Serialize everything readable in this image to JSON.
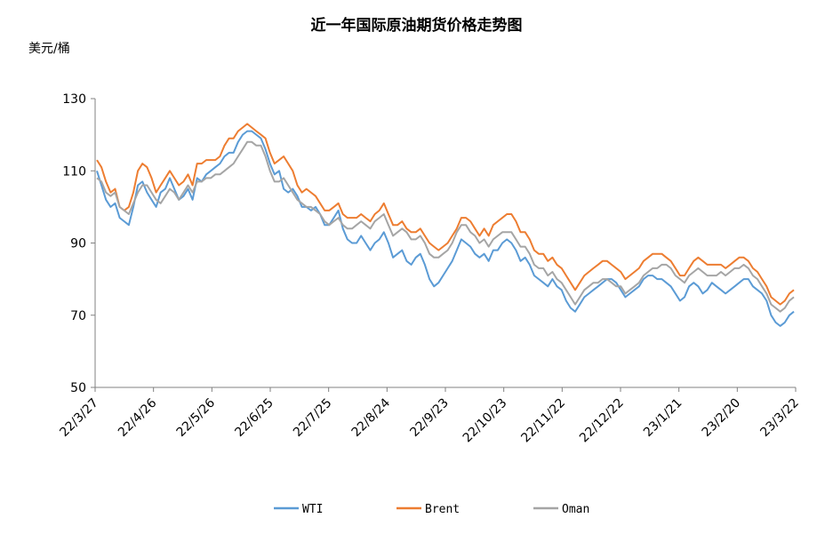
{
  "chart_data": {
    "type": "line",
    "title": "近一年国际原油期货价格走势图",
    "ylabel": "美元/桶",
    "xlabel": "",
    "ylim": [
      50,
      130
    ],
    "yticks": [
      50,
      70,
      90,
      110,
      130
    ],
    "xtick_labels": [
      "22/3/27",
      "22/4/26",
      "22/5/26",
      "22/6/25",
      "22/7/25",
      "22/8/24",
      "22/9/23",
      "22/10/23",
      "22/11/22",
      "22/12/22",
      "23/1/21",
      "23/2/20",
      "23/3/22"
    ],
    "x_start": "22/3/27",
    "x_end": "23/3/22",
    "legend_position": "bottom",
    "grid": false,
    "series": [
      {
        "name": "WTI",
        "color": "#5b9bd5",
        "values": [
          110,
          106,
          102,
          100,
          101,
          97,
          96,
          95,
          100,
          106,
          107,
          104,
          102,
          100,
          104,
          105,
          108,
          105,
          102,
          103,
          105,
          102,
          108,
          107,
          109,
          110,
          111,
          112,
          114,
          115,
          115,
          118,
          120,
          121,
          121,
          120,
          119,
          116,
          112,
          109,
          110,
          105,
          104,
          105,
          103,
          100,
          100,
          99,
          100,
          98,
          95,
          95,
          97,
          99,
          94,
          91,
          90,
          90,
          92,
          90,
          88,
          90,
          91,
          93,
          90,
          86,
          87,
          88,
          85,
          84,
          86,
          87,
          84,
          80,
          78,
          79,
          81,
          83,
          85,
          88,
          91,
          90,
          89,
          87,
          86,
          87,
          85,
          88,
          88,
          90,
          91,
          90,
          88,
          85,
          86,
          84,
          81,
          80,
          79,
          78,
          80,
          78,
          77,
          74,
          72,
          71,
          73,
          75,
          76,
          77,
          78,
          79,
          80,
          80,
          79,
          77,
          75,
          76,
          77,
          78,
          80,
          81,
          81,
          80,
          80,
          79,
          78,
          76,
          74,
          75,
          78,
          79,
          78,
          76,
          77,
          79,
          78,
          77,
          76,
          77,
          78,
          79,
          80,
          80,
          78,
          77,
          76,
          74,
          70,
          68,
          67,
          68,
          70,
          71
        ]
      },
      {
        "name": "Brent",
        "color": "#ed7d31",
        "values": [
          113,
          111,
          107,
          104,
          105,
          100,
          99,
          100,
          104,
          110,
          112,
          111,
          108,
          104,
          106,
          108,
          110,
          108,
          106,
          107,
          109,
          106,
          112,
          112,
          113,
          113,
          113,
          114,
          117,
          119,
          119,
          121,
          122,
          123,
          122,
          121,
          120,
          119,
          115,
          112,
          113,
          114,
          112,
          110,
          106,
          104,
          105,
          104,
          103,
          101,
          99,
          99,
          100,
          101,
          98,
          97,
          97,
          97,
          98,
          97,
          96,
          98,
          99,
          101,
          98,
          95,
          95,
          96,
          94,
          93,
          93,
          94,
          92,
          90,
          89,
          88,
          89,
          90,
          92,
          94,
          97,
          97,
          96,
          94,
          92,
          94,
          92,
          95,
          96,
          97,
          98,
          98,
          96,
          93,
          93,
          91,
          88,
          87,
          87,
          85,
          86,
          84,
          83,
          81,
          79,
          77,
          79,
          81,
          82,
          83,
          84,
          85,
          85,
          84,
          83,
          82,
          80,
          81,
          82,
          83,
          85,
          86,
          87,
          87,
          87,
          86,
          85,
          83,
          81,
          81,
          83,
          85,
          86,
          85,
          84,
          84,
          84,
          84,
          83,
          84,
          85,
          86,
          86,
          85,
          83,
          82,
          80,
          78,
          75,
          74,
          73,
          74,
          76,
          77
        ]
      },
      {
        "name": "Oman",
        "color": "#a5a5a5",
        "values": [
          108,
          107,
          104,
          103,
          104,
          100,
          99,
          98,
          101,
          104,
          106,
          106,
          104,
          102,
          101,
          103,
          105,
          104,
          102,
          104,
          106,
          104,
          107,
          107,
          108,
          108,
          109,
          109,
          110,
          111,
          112,
          114,
          116,
          118,
          118,
          117,
          117,
          114,
          110,
          107,
          107,
          108,
          106,
          104,
          102,
          101,
          100,
          100,
          99,
          98,
          96,
          95,
          96,
          97,
          95,
          94,
          94,
          95,
          96,
          95,
          94,
          96,
          97,
          98,
          95,
          92,
          93,
          94,
          93,
          91,
          91,
          92,
          90,
          87,
          86,
          86,
          87,
          88,
          90,
          93,
          95,
          95,
          93,
          92,
          90,
          91,
          89,
          91,
          92,
          93,
          93,
          93,
          91,
          89,
          89,
          87,
          84,
          83,
          83,
          81,
          82,
          80,
          79,
          77,
          75,
          73,
          75,
          77,
          78,
          79,
          79,
          80,
          80,
          79,
          78,
          78,
          76,
          77,
          78,
          79,
          81,
          82,
          83,
          83,
          84,
          84,
          83,
          81,
          80,
          79,
          81,
          82,
          83,
          82,
          81,
          81,
          81,
          82,
          81,
          82,
          83,
          83,
          84,
          83,
          81,
          80,
          78,
          76,
          73,
          72,
          71,
          72,
          74,
          75
        ]
      }
    ]
  }
}
